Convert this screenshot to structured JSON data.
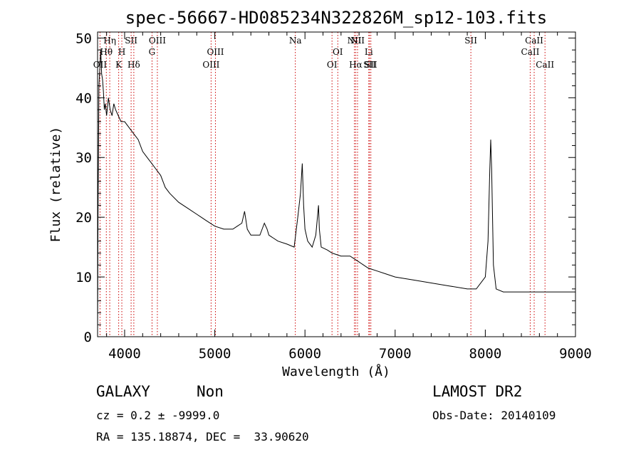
{
  "chart_data": {
    "type": "line",
    "title": "spec-56667-HD085234N322826M_sp12-103.fits",
    "xlabel": "Wavelength (Å)",
    "ylabel": "Flux (relative)",
    "xlim": [
      3700,
      9000
    ],
    "ylim": [
      0,
      51
    ],
    "xticks": [
      4000,
      5000,
      6000,
      7000,
      8000,
      9000
    ],
    "yticks": [
      0,
      10,
      20,
      30,
      40,
      50
    ],
    "grid": false,
    "series": [
      {
        "x": [
          3700,
          3705,
          3715,
          3725,
          3735,
          3745,
          3755,
          3765,
          3775,
          3785,
          3800,
          3820,
          3840,
          3860,
          3880,
          3900,
          3930,
          3960,
          4000,
          4050,
          4100,
          4150,
          4200,
          4250,
          4300,
          4350,
          4400,
          4450,
          4500,
          4600,
          4700,
          4800,
          4850,
          4900,
          5000,
          5100,
          5200,
          5250,
          5300,
          5330,
          5360,
          5400,
          5500,
          5550,
          5580,
          5600,
          5650,
          5700,
          5800,
          5880,
          5920,
          5950,
          5970,
          5985,
          6000,
          6030,
          6080,
          6120,
          6150,
          6160,
          6180,
          6250,
          6300,
          6400,
          6500,
          6600,
          6700,
          6800,
          6900,
          7000,
          7200,
          7400,
          7600,
          7800,
          7900,
          8000,
          8030,
          8050,
          8060,
          8070,
          8090,
          8120,
          8200,
          8400,
          8600,
          8800,
          9000
        ],
        "values": [
          0,
          20,
          42,
          45,
          48,
          44,
          43,
          41,
          38,
          39,
          37,
          40,
          38,
          37,
          39,
          38,
          37,
          36,
          36,
          35,
          34,
          33,
          31,
          30,
          29,
          28,
          27,
          25,
          24,
          22.5,
          21.5,
          20.5,
          20,
          19.5,
          18.5,
          18,
          18,
          18.5,
          19,
          21,
          18,
          17,
          17,
          19,
          18,
          17,
          16.5,
          16,
          15.5,
          15,
          20,
          24,
          29,
          22,
          18,
          16,
          15,
          17,
          22,
          18,
          15,
          14.5,
          14,
          13.5,
          13.5,
          12.5,
          11.5,
          11,
          10.5,
          10,
          9.5,
          9,
          8.5,
          8,
          8,
          10,
          16,
          28,
          33,
          28,
          12,
          8,
          7.5,
          7.5,
          7.5,
          7.5,
          7.5
        ]
      }
    ],
    "lines": [
      {
        "label": "OII",
        "x": 3727,
        "row": 3
      },
      {
        "label": "Hθ",
        "x": 3797,
        "row": 2
      },
      {
        "label": "Hη",
        "x": 3835,
        "row": 1
      },
      {
        "label": "K",
        "x": 3934,
        "row": 3
      },
      {
        "label": "H",
        "x": 3969,
        "row": 2
      },
      {
        "label": "SII",
        "x": 4072,
        "row": 1
      },
      {
        "label": "Hδ",
        "x": 4102,
        "row": 3
      },
      {
        "label": "G",
        "x": 4304,
        "row": 2
      },
      {
        "label": "OIII",
        "x": 4363,
        "row": 1
      },
      {
        "label": "OIII",
        "x": 4959,
        "row": 3
      },
      {
        "label": "OIII",
        "x": 5007,
        "row": 2
      },
      {
        "label": "Na",
        "x": 5893,
        "row": 1
      },
      {
        "label": "OI",
        "x": 6300,
        "row": 3
      },
      {
        "label": "OI",
        "x": 6364,
        "row": 2
      },
      {
        "label": "NII",
        "x": 6548,
        "row": 1
      },
      {
        "label": "Hα",
        "x": 6563,
        "row": 3
      },
      {
        "label": "NII",
        "x": 6583,
        "row": 1
      },
      {
        "label": "Li",
        "x": 6708,
        "row": 2
      },
      {
        "label": "SII",
        "x": 6716,
        "row": 3
      },
      {
        "label": "SII",
        "x": 6731,
        "row": 3
      },
      {
        "label": "SII",
        "x": 7840,
        "row": 1
      },
      {
        "label": "CaII",
        "x": 8498,
        "row": 2
      },
      {
        "label": "CaII",
        "x": 8542,
        "row": 1
      },
      {
        "label": "CaII",
        "x": 8662,
        "row": 3
      }
    ]
  },
  "footer": {
    "class_label": "GALAXY",
    "subclass_label": "Non",
    "survey_label": "LAMOST DR2",
    "cz_text": "cz = 0.2 ± -9999.0",
    "obs_date_text": "Obs-Date: 20140109",
    "coords_text": "RA = 135.18874, DEC =  33.90620"
  },
  "colors": {
    "spectrum": "#000000",
    "line_markers": "#cc0000"
  }
}
